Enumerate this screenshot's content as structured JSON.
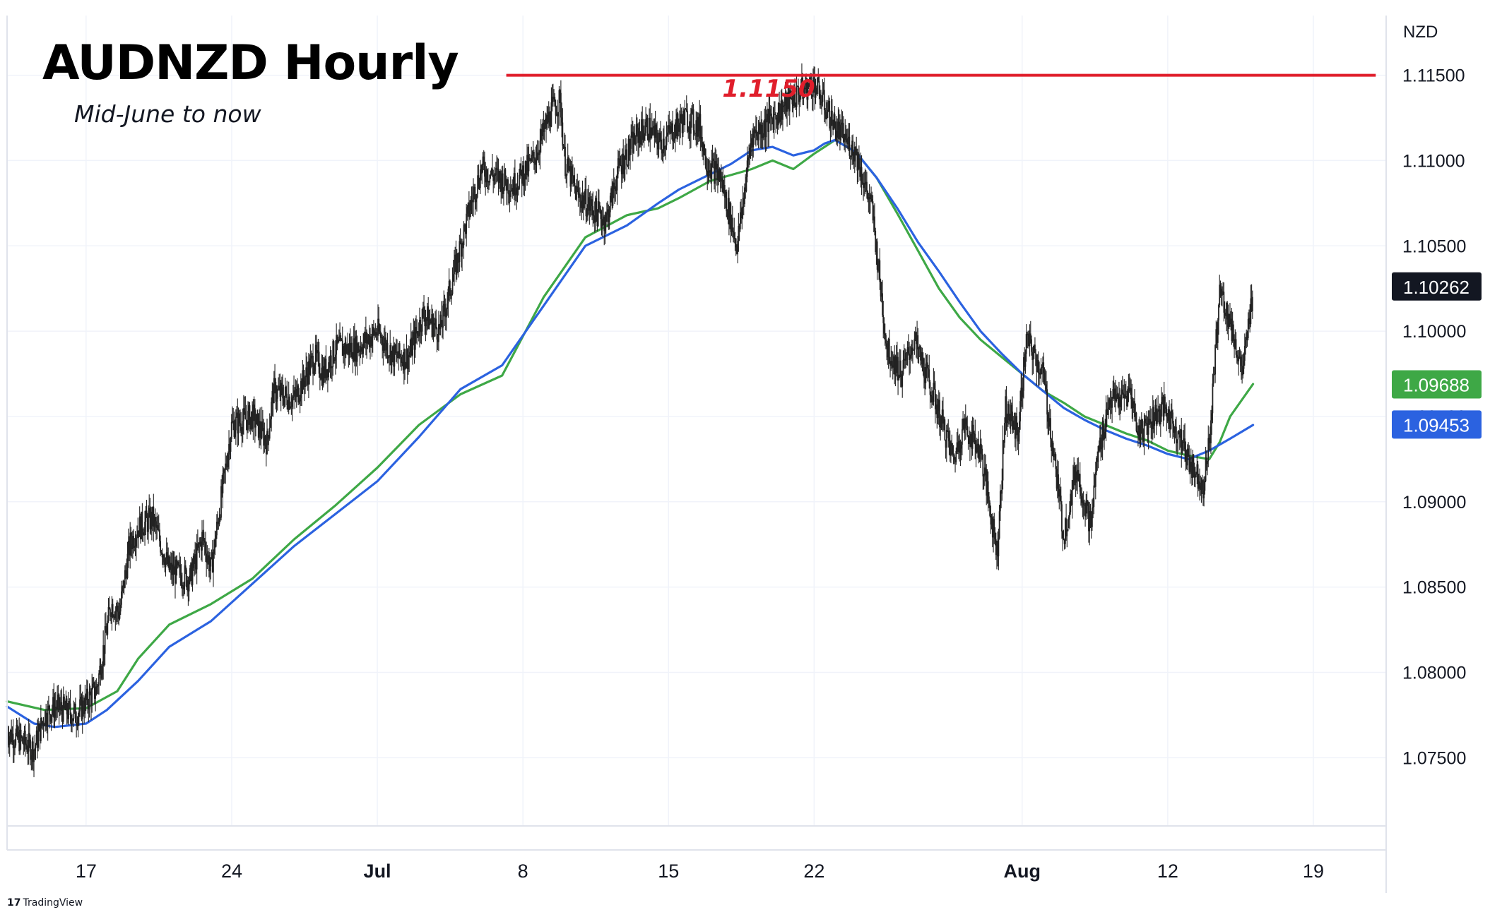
{
  "header": {
    "title": "AUDNZD Hourly",
    "subtitle": "Mid-June to now"
  },
  "currency_label": "NZD",
  "brand": {
    "logo_text": "17",
    "name": "TradingView"
  },
  "colors": {
    "background": "#ffffff",
    "grid": "#f0f3fa",
    "candles": "#222222",
    "resistance": "#e01e2b",
    "ma_green": "#3ea846",
    "ma_blue": "#2b62e0",
    "last_price_bg": "#131722",
    "axis_text": "#131722"
  },
  "chart_data": {
    "type": "line",
    "title": "AUDNZD Hourly",
    "subtitle": "Mid-June to now",
    "ylim": [
      1.071,
      1.1185
    ],
    "y_ticks": [
      "1.07500",
      "1.08000",
      "1.08500",
      "1.09000",
      "1.09500",
      "1.10000",
      "1.10500",
      "1.11000",
      "1.11500"
    ],
    "x_ticks": [
      "17",
      "24",
      "Jul",
      "8",
      "15",
      "22",
      "Aug",
      "12",
      "19"
    ],
    "x_tick_days": [
      0,
      7,
      14,
      21,
      28,
      35,
      45,
      52,
      59
    ],
    "x_range_days": [
      -3.8,
      62.5
    ],
    "grid": true,
    "price_path": {
      "name": "AUDNZD",
      "x_days": [
        -3.8,
        -2.5,
        -2.0,
        -1.5,
        -0.5,
        0.5,
        1.2,
        1.6,
        2.1,
        2.5,
        3.2,
        4.0,
        5.0,
        5.6,
        6.0,
        7.0,
        8.0,
        8.7,
        9.0,
        10.0,
        11.0,
        11.4,
        12.0,
        13.0,
        14.0,
        14.8,
        15.5,
        16.2,
        17.0,
        18.5,
        19.0,
        19.8,
        20.5,
        21.5,
        22.4,
        22.8,
        23.0,
        23.6,
        24.5,
        25.0,
        25.6,
        26.5,
        27.0,
        27.6,
        28.0,
        28.8,
        29.5,
        29.8,
        30.5,
        31.3,
        32.0,
        32.6,
        33.4,
        34.3,
        35.0,
        36.0,
        37.0,
        37.8,
        38.5,
        39.2,
        39.8,
        40.8,
        41.7,
        42.2,
        43.0,
        43.8,
        44.2,
        44.8,
        45.2,
        46.0,
        46.6,
        47.0,
        47.6,
        48.3,
        48.6,
        49.2,
        49.8,
        50.2,
        50.6,
        51.3,
        51.8,
        52.3,
        53.0,
        53.7,
        54.0,
        54.5,
        55.0,
        55.6,
        56.1
      ],
      "values": [
        1.0765,
        1.0755,
        1.0775,
        1.078,
        1.0775,
        1.079,
        1.084,
        1.0835,
        1.0875,
        1.0885,
        1.089,
        1.086,
        1.0855,
        1.088,
        1.086,
        1.0945,
        1.095,
        1.0935,
        1.0965,
        1.096,
        1.0985,
        1.0975,
        1.099,
        1.099,
        1.1,
        1.0985,
        1.0985,
        1.101,
        1.1,
        1.1075,
        1.1095,
        1.109,
        1.1085,
        1.11,
        1.113,
        1.1135,
        1.11,
        1.108,
        1.107,
        1.1065,
        1.1095,
        1.1115,
        1.112,
        1.111,
        1.1115,
        1.1125,
        1.112,
        1.11,
        1.109,
        1.105,
        1.1115,
        1.112,
        1.113,
        1.114,
        1.1145,
        1.112,
        1.1105,
        1.107,
        1.099,
        1.0975,
        1.0995,
        1.096,
        1.0925,
        1.0945,
        1.093,
        1.087,
        1.0955,
        1.094,
        1.0995,
        1.0975,
        1.092,
        1.088,
        1.092,
        1.0885,
        1.0925,
        1.096,
        1.096,
        1.0965,
        1.094,
        1.095,
        1.0955,
        1.0945,
        1.0925,
        1.091,
        1.0935,
        1.1025,
        1.1005,
        1.0975,
        1.1025
      ]
    },
    "series": [
      {
        "color": "#3ea846",
        "x_days": [
          -3.8,
          -2.0,
          0.0,
          1.5,
          2.5,
          4.0,
          6.0,
          8.0,
          10.0,
          12.0,
          14.0,
          16.0,
          18.0,
          20.0,
          22.0,
          24.0,
          26.0,
          27.5,
          28.5,
          30.0,
          32.0,
          33.0,
          34.0,
          35.0,
          35.5,
          36.0,
          37.0,
          38.0,
          39.0,
          40.0,
          41.0,
          42.0,
          43.0,
          44.0,
          45.0,
          46.0,
          47.0,
          48.0,
          49.0,
          50.0,
          51.0,
          52.0,
          53.0,
          54.0,
          54.5,
          55.0,
          56.1
        ],
        "values": [
          1.0783,
          1.0778,
          1.0779,
          1.0789,
          1.0808,
          1.0828,
          1.084,
          1.0855,
          1.0878,
          1.0898,
          1.092,
          1.0945,
          1.0963,
          1.0974,
          1.102,
          1.1055,
          1.1068,
          1.1072,
          1.1078,
          1.1088,
          1.1095,
          1.11,
          1.1095,
          1.1104,
          1.1108,
          1.1112,
          1.1105,
          1.109,
          1.1069,
          1.1047,
          1.1025,
          1.1008,
          1.0995,
          1.0985,
          1.0975,
          1.0965,
          1.0958,
          1.095,
          1.0945,
          1.094,
          1.0936,
          1.093,
          1.0927,
          1.0925,
          1.0935,
          1.095,
          1.0969
        ]
      },
      {
        "color": "#2b62e0",
        "x_days": [
          -3.8,
          -2.5,
          -1.5,
          0.0,
          1.0,
          2.5,
          4.0,
          6.0,
          8.0,
          10.0,
          12.0,
          14.0,
          16.0,
          18.0,
          20.0,
          22.0,
          24.0,
          26.0,
          27.5,
          28.5,
          30.0,
          31.0,
          32.0,
          33.0,
          34.0,
          35.0,
          35.5,
          36.0,
          37.0,
          38.0,
          39.0,
          40.0,
          41.0,
          42.0,
          43.0,
          44.0,
          45.0,
          46.0,
          47.0,
          48.0,
          49.0,
          50.0,
          51.0,
          52.0,
          53.0,
          54.0,
          55.0,
          56.1
        ],
        "values": [
          1.078,
          1.077,
          1.0768,
          1.077,
          1.0778,
          1.0795,
          1.0815,
          1.083,
          1.0852,
          1.0874,
          1.0893,
          1.0912,
          1.0938,
          1.0966,
          1.098,
          1.1015,
          1.105,
          1.1062,
          1.1075,
          1.1083,
          1.1092,
          1.1098,
          1.1106,
          1.1108,
          1.1103,
          1.1106,
          1.111,
          1.1112,
          1.1105,
          1.109,
          1.1072,
          1.1052,
          1.1035,
          1.1017,
          1.1,
          1.0987,
          1.0975,
          1.0965,
          1.0955,
          1.0948,
          1.0942,
          1.0937,
          1.0933,
          1.0928,
          1.0925,
          1.093,
          1.0937,
          1.0945
        ]
      }
    ],
    "resistance": {
      "value": 1.115,
      "label": "1.1150",
      "x_start_days": 20.2,
      "x_end_days": 62.0
    },
    "last_price_labels": [
      {
        "value": 1.10262,
        "label": "1.10262",
        "color": "#131722"
      },
      {
        "value": 1.09688,
        "label": "1.09688",
        "color": "#3ea846"
      },
      {
        "value": 1.09453,
        "label": "1.09453",
        "color": "#2b62e0"
      }
    ]
  }
}
